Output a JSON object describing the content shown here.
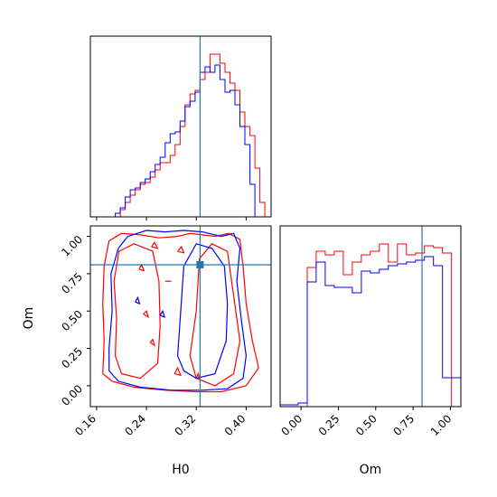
{
  "chart_data": {
    "type": "corner",
    "colors": {
      "series_a": "#ff0000",
      "series_b": "#0000ff",
      "truth": "#1f77b4"
    },
    "truth": {
      "H0": 0.326,
      "Om": 0.81
    },
    "axes": {
      "H0": {
        "label": "H0",
        "range": [
          0.15,
          0.44
        ],
        "ticks": [
          0.16,
          0.24,
          0.32,
          0.4
        ],
        "tick_labels": [
          "0.16",
          "0.24",
          "0.32",
          "0.40"
        ]
      },
      "Om": {
        "label": "Om",
        "range": [
          -0.14,
          1.07
        ],
        "ticks": [
          0.0,
          0.25,
          0.5,
          0.75,
          1.0
        ],
        "tick_labels": [
          "0.00",
          "0.25",
          "0.50",
          "0.75",
          "1.00"
        ]
      }
    },
    "hist_H0": {
      "bin_edges": [
        0.158,
        0.166,
        0.174,
        0.182,
        0.19,
        0.198,
        0.206,
        0.214,
        0.222,
        0.23,
        0.238,
        0.246,
        0.254,
        0.262,
        0.27,
        0.278,
        0.286,
        0.294,
        0.302,
        0.31,
        0.318,
        0.326,
        0.334,
        0.342,
        0.35,
        0.358,
        0.366,
        0.374,
        0.382,
        0.39,
        0.398,
        0.406,
        0.414,
        0.422,
        0.43,
        0.438
      ],
      "series_a": [
        0,
        0,
        0,
        0,
        0,
        4,
        8,
        12,
        15,
        18,
        19,
        22,
        26,
        30,
        30,
        34,
        40,
        50,
        62,
        68,
        70,
        76,
        80,
        90,
        90,
        85,
        80,
        74,
        70,
        58,
        50,
        45,
        27,
        8,
        0
      ],
      "series_b": [
        0,
        0,
        0,
        0,
        2,
        5,
        11,
        15,
        16,
        19,
        21,
        25,
        29,
        33,
        41,
        46,
        47,
        53,
        61,
        64,
        69,
        80,
        83,
        80,
        84,
        76,
        69,
        70,
        62,
        50,
        40,
        18,
        0,
        0,
        0
      ]
    },
    "hist_Om": {
      "bin_edges": [
        -0.14,
        -0.0796,
        -0.0192,
        0.0412,
        0.1016,
        0.162,
        0.2224,
        0.2828,
        0.3432,
        0.4036,
        0.464,
        0.5244,
        0.5848,
        0.6452,
        0.7056,
        0.766,
        0.8264,
        0.8868,
        0.9472,
        1.0076,
        1.068
      ],
      "series_a": [
        0,
        0,
        0,
        77,
        86,
        84,
        86,
        73,
        80,
        84,
        86,
        90,
        80,
        90,
        84,
        85,
        89,
        88,
        85,
        0
      ],
      "series_b": [
        1,
        1,
        2,
        69,
        80,
        67,
        66,
        66,
        63,
        75,
        74,
        76,
        78,
        79,
        80,
        81,
        83,
        78,
        16,
        16
      ]
    },
    "contours": {
      "series_a": [
        [
          [
            0.17,
            0.08
          ],
          [
            0.172,
            0.3
          ],
          [
            0.17,
            0.55
          ],
          [
            0.172,
            0.8
          ],
          [
            0.18,
            0.97
          ],
          [
            0.2,
            1.02
          ],
          [
            0.23,
            1.01
          ],
          [
            0.26,
            0.99
          ],
          [
            0.29,
            1.0
          ],
          [
            0.31,
            1.02
          ],
          [
            0.33,
            1.01
          ],
          [
            0.35,
            1.0
          ],
          [
            0.372,
            1.02
          ],
          [
            0.39,
            0.98
          ],
          [
            0.395,
            0.8
          ],
          [
            0.4,
            0.55
          ],
          [
            0.41,
            0.3
          ],
          [
            0.42,
            0.12
          ],
          [
            0.4,
            0.0
          ],
          [
            0.36,
            -0.04
          ],
          [
            0.32,
            -0.04
          ],
          [
            0.27,
            -0.03
          ],
          [
            0.22,
            -0.01
          ],
          [
            0.185,
            0.03
          ],
          [
            0.17,
            0.08
          ]
        ],
        [
          [
            0.19,
            0.2
          ],
          [
            0.192,
            0.45
          ],
          [
            0.188,
            0.7
          ],
          [
            0.196,
            0.9
          ],
          [
            0.22,
            0.95
          ],
          [
            0.25,
            0.9
          ],
          [
            0.26,
            0.7
          ],
          [
            0.262,
            0.4
          ],
          [
            0.258,
            0.15
          ],
          [
            0.23,
            0.05
          ],
          [
            0.2,
            0.08
          ],
          [
            0.19,
            0.2
          ]
        ],
        [
          [
            0.31,
            0.2
          ],
          [
            0.32,
            0.5
          ],
          [
            0.325,
            0.85
          ],
          [
            0.345,
            0.95
          ],
          [
            0.37,
            0.9
          ],
          [
            0.38,
            0.6
          ],
          [
            0.39,
            0.3
          ],
          [
            0.38,
            0.08
          ],
          [
            0.35,
            0.0
          ],
          [
            0.32,
            0.05
          ],
          [
            0.31,
            0.2
          ]
        ],
        [
          [
            0.248,
            0.93
          ],
          [
            0.253,
            0.96
          ],
          [
            0.258,
            0.92
          ],
          [
            0.248,
            0.93
          ]
        ],
        [
          [
            0.29,
            0.9
          ],
          [
            0.296,
            0.93
          ],
          [
            0.3,
            0.89
          ],
          [
            0.29,
            0.9
          ]
        ],
        [
          [
            0.228,
            0.78
          ],
          [
            0.232,
            0.81
          ],
          [
            0.236,
            0.77
          ],
          [
            0.228,
            0.78
          ]
        ],
        [
          [
            0.27,
            0.7
          ],
          [
            0.28,
            0.7
          ]
        ],
        [
          [
            0.235,
            0.48
          ],
          [
            0.24,
            0.5
          ],
          [
            0.243,
            0.46
          ],
          [
            0.235,
            0.48
          ]
        ],
        [
          [
            0.246,
            0.29
          ],
          [
            0.25,
            0.31
          ],
          [
            0.253,
            0.27
          ],
          [
            0.246,
            0.29
          ]
        ],
        [
          [
            0.285,
            0.08
          ],
          [
            0.29,
            0.12
          ],
          [
            0.295,
            0.07
          ],
          [
            0.285,
            0.08
          ]
        ],
        [
          [
            0.32,
            0.05
          ],
          [
            0.323,
            0.08
          ],
          [
            0.326,
            0.04
          ],
          [
            0.32,
            0.05
          ]
        ]
      ],
      "series_b": [
        [
          [
            0.18,
            0.25
          ],
          [
            0.185,
            0.5
          ],
          [
            0.183,
            0.75
          ],
          [
            0.195,
            0.92
          ],
          [
            0.21,
            1.0
          ],
          [
            0.24,
            1.04
          ],
          [
            0.27,
            1.03
          ],
          [
            0.3,
            1.04
          ],
          [
            0.33,
            1.03
          ],
          [
            0.36,
            1.0
          ],
          [
            0.38,
            1.02
          ],
          [
            0.39,
            0.92
          ],
          [
            0.385,
            0.7
          ],
          [
            0.392,
            0.45
          ],
          [
            0.4,
            0.2
          ],
          [
            0.395,
            0.05
          ],
          [
            0.37,
            -0.02
          ],
          [
            0.33,
            -0.03
          ],
          [
            0.28,
            -0.03
          ],
          [
            0.23,
            -0.01
          ],
          [
            0.195,
            0.03
          ],
          [
            0.18,
            0.1
          ],
          [
            0.18,
            0.25
          ]
        ],
        [
          [
            0.29,
            0.2
          ],
          [
            0.295,
            0.5
          ],
          [
            0.3,
            0.8
          ],
          [
            0.32,
            0.95
          ],
          [
            0.345,
            0.92
          ],
          [
            0.365,
            0.8
          ],
          [
            0.37,
            0.55
          ],
          [
            0.368,
            0.3
          ],
          [
            0.35,
            0.08
          ],
          [
            0.32,
            0.05
          ],
          [
            0.3,
            0.1
          ],
          [
            0.29,
            0.2
          ]
        ],
        [
          [
            0.222,
            0.56
          ],
          [
            0.226,
            0.59
          ],
          [
            0.229,
            0.55
          ],
          [
            0.222,
            0.56
          ]
        ],
        [
          [
            0.262,
            0.47
          ],
          [
            0.266,
            0.5
          ],
          [
            0.269,
            0.46
          ],
          [
            0.262,
            0.47
          ]
        ]
      ]
    }
  }
}
